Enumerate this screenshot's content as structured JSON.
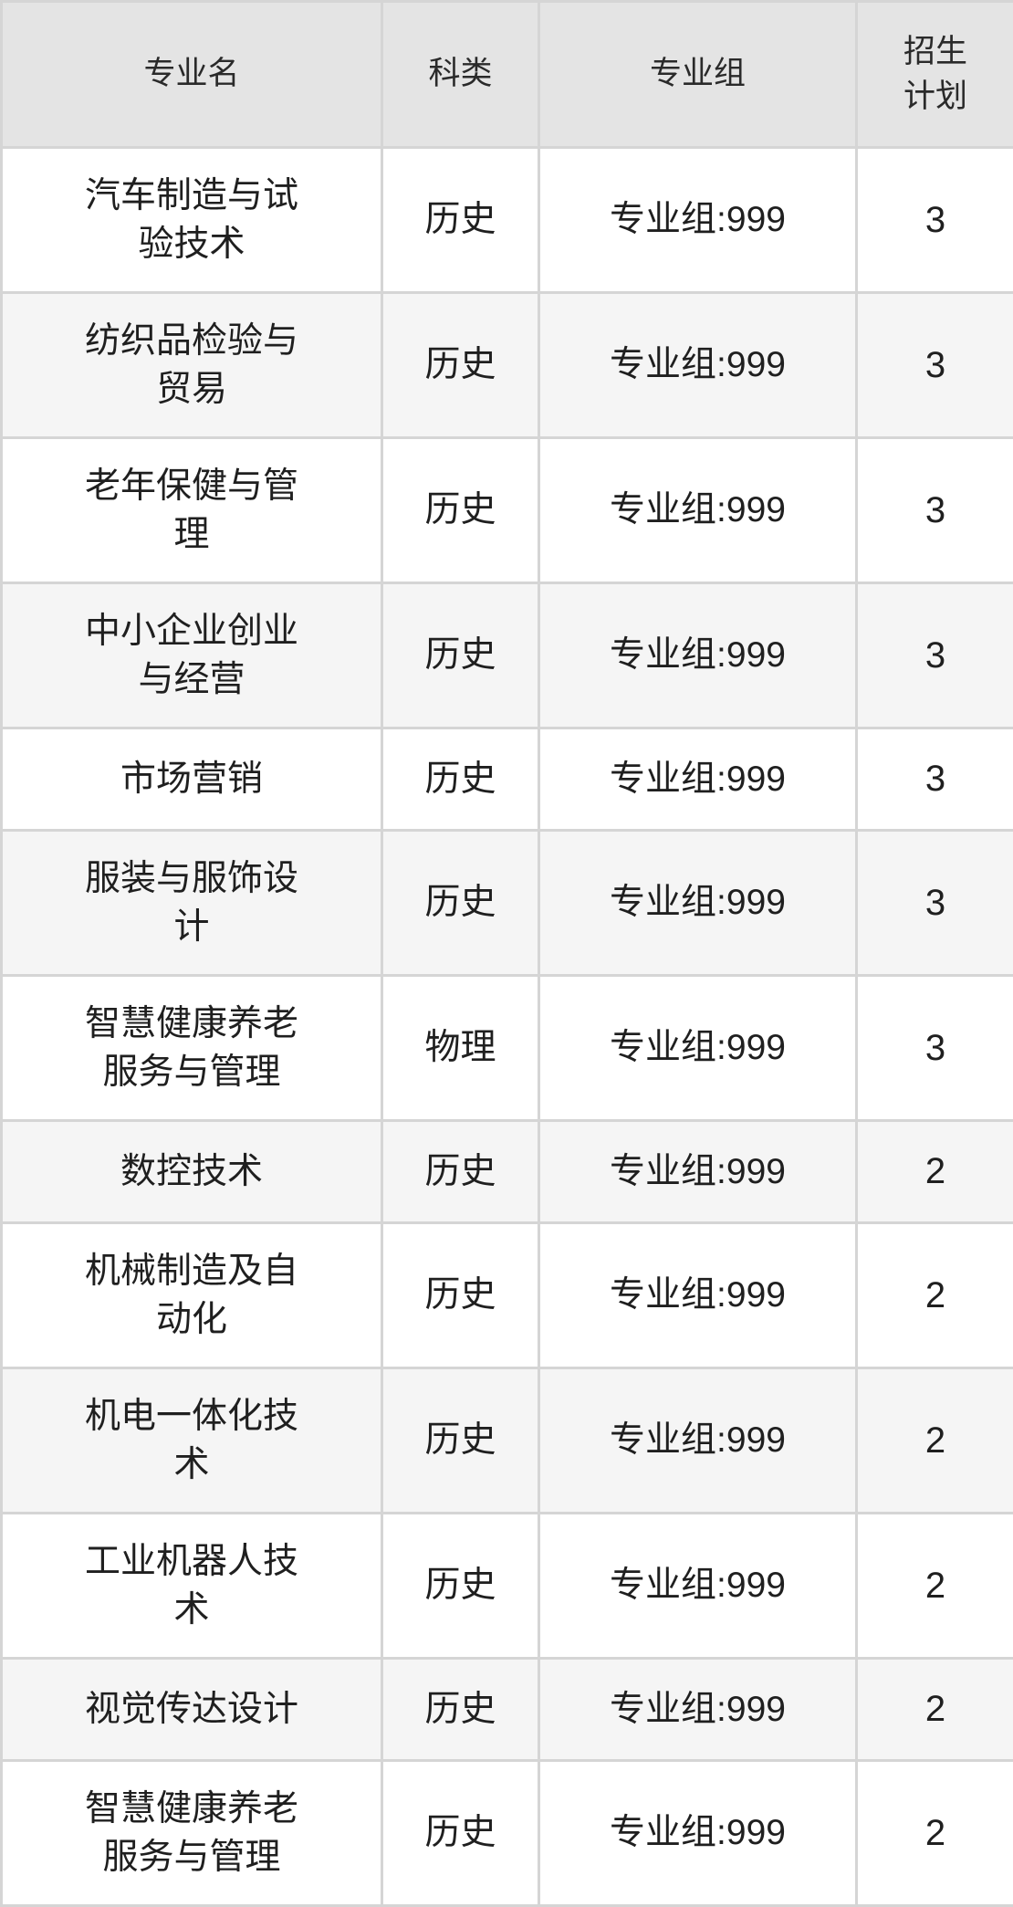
{
  "header": {
    "major": "专业名",
    "category": "科类",
    "group": "专业组",
    "plan_line1": "招生",
    "plan_line2": "计划"
  },
  "rows": [
    {
      "major": "汽车制造与试验技术",
      "category": "历史",
      "group": "专业组:999",
      "plan": "3"
    },
    {
      "major": "纺织品检验与贸易",
      "category": "历史",
      "group": "专业组:999",
      "plan": "3"
    },
    {
      "major": "老年保健与管理",
      "category": "历史",
      "group": "专业组:999",
      "plan": "3"
    },
    {
      "major": "中小企业创业与经营",
      "category": "历史",
      "group": "专业组:999",
      "plan": "3"
    },
    {
      "major": "市场营销",
      "category": "历史",
      "group": "专业组:999",
      "plan": "3"
    },
    {
      "major": "服装与服饰设计",
      "category": "历史",
      "group": "专业组:999",
      "plan": "3"
    },
    {
      "major": "智慧健康养老服务与管理",
      "category": "物理",
      "group": "专业组:999",
      "plan": "3"
    },
    {
      "major": "数控技术",
      "category": "历史",
      "group": "专业组:999",
      "plan": "2"
    },
    {
      "major": "机械制造及自动化",
      "category": "历史",
      "group": "专业组:999",
      "plan": "2"
    },
    {
      "major": "机电一体化技术",
      "category": "历史",
      "group": "专业组:999",
      "plan": "2"
    },
    {
      "major": "工业机器人技术",
      "category": "历史",
      "group": "专业组:999",
      "plan": "2"
    },
    {
      "major": "视觉传达设计",
      "category": "历史",
      "group": "专业组:999",
      "plan": "2"
    },
    {
      "major": "智慧健康养老服务与管理",
      "category": "历史",
      "group": "专业组:999",
      "plan": "2"
    }
  ],
  "colors": {
    "header_bg": "#e4e4e4",
    "row_bg": "#ffffff",
    "row_alt_bg": "#f5f5f5",
    "border": "#d5d5d5",
    "text": "#1f1f1f",
    "header_text": "#2a2a2a"
  }
}
